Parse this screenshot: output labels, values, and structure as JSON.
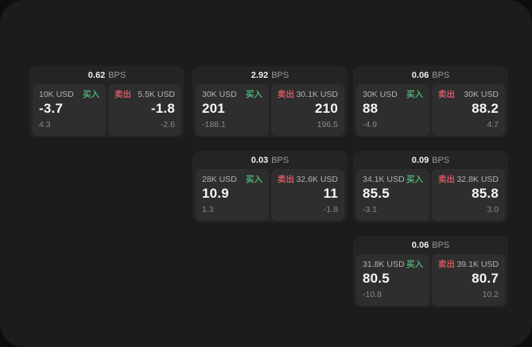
{
  "labels": {
    "bps_unit": "BPS",
    "buy": "买入",
    "sell": "卖出"
  },
  "colors": {
    "buy_green": "#4fae73",
    "sell_red": "#cf5862",
    "panel": "#1c1c1c",
    "card": "#242424",
    "tile": "#2e2e2e"
  },
  "cards": [
    {
      "col": 0,
      "row": 0,
      "bps": "0.62",
      "buy": {
        "amount": "10K USD",
        "value": "-3.7",
        "delta": "4.3"
      },
      "sell": {
        "amount": "5.5K USD",
        "value": "-1.8",
        "delta": "-2.6"
      }
    },
    {
      "col": 1,
      "row": 0,
      "bps": "2.92",
      "buy": {
        "amount": "30K USD",
        "value": "201",
        "delta": "-188.1"
      },
      "sell": {
        "amount": "30.1K USD",
        "value": "210",
        "delta": "196.5"
      }
    },
    {
      "col": 2,
      "row": 0,
      "bps": "0.06",
      "buy": {
        "amount": "30K USD",
        "value": "88",
        "delta": "-4.9"
      },
      "sell": {
        "amount": "30K USD",
        "value": "88.2",
        "delta": "4.7"
      }
    },
    {
      "col": 1,
      "row": 1,
      "bps": "0.03",
      "buy": {
        "amount": "28K USD",
        "value": "10.9",
        "delta": "1.3"
      },
      "sell": {
        "amount": "32.6K USD",
        "value": "11",
        "delta": "-1.8"
      }
    },
    {
      "col": 2,
      "row": 1,
      "bps": "0.09",
      "buy": {
        "amount": "34.1K USD",
        "value": "85.5",
        "delta": "-3.1"
      },
      "sell": {
        "amount": "32.8K USD",
        "value": "85.8",
        "delta": "3.0"
      }
    },
    {
      "col": 2,
      "row": 2,
      "bps": "0.06",
      "buy": {
        "amount": "31.8K USD",
        "value": "80.5",
        "delta": "-10.8"
      },
      "sell": {
        "amount": "39.1K USD",
        "value": "80.7",
        "delta": "10.2"
      }
    }
  ]
}
